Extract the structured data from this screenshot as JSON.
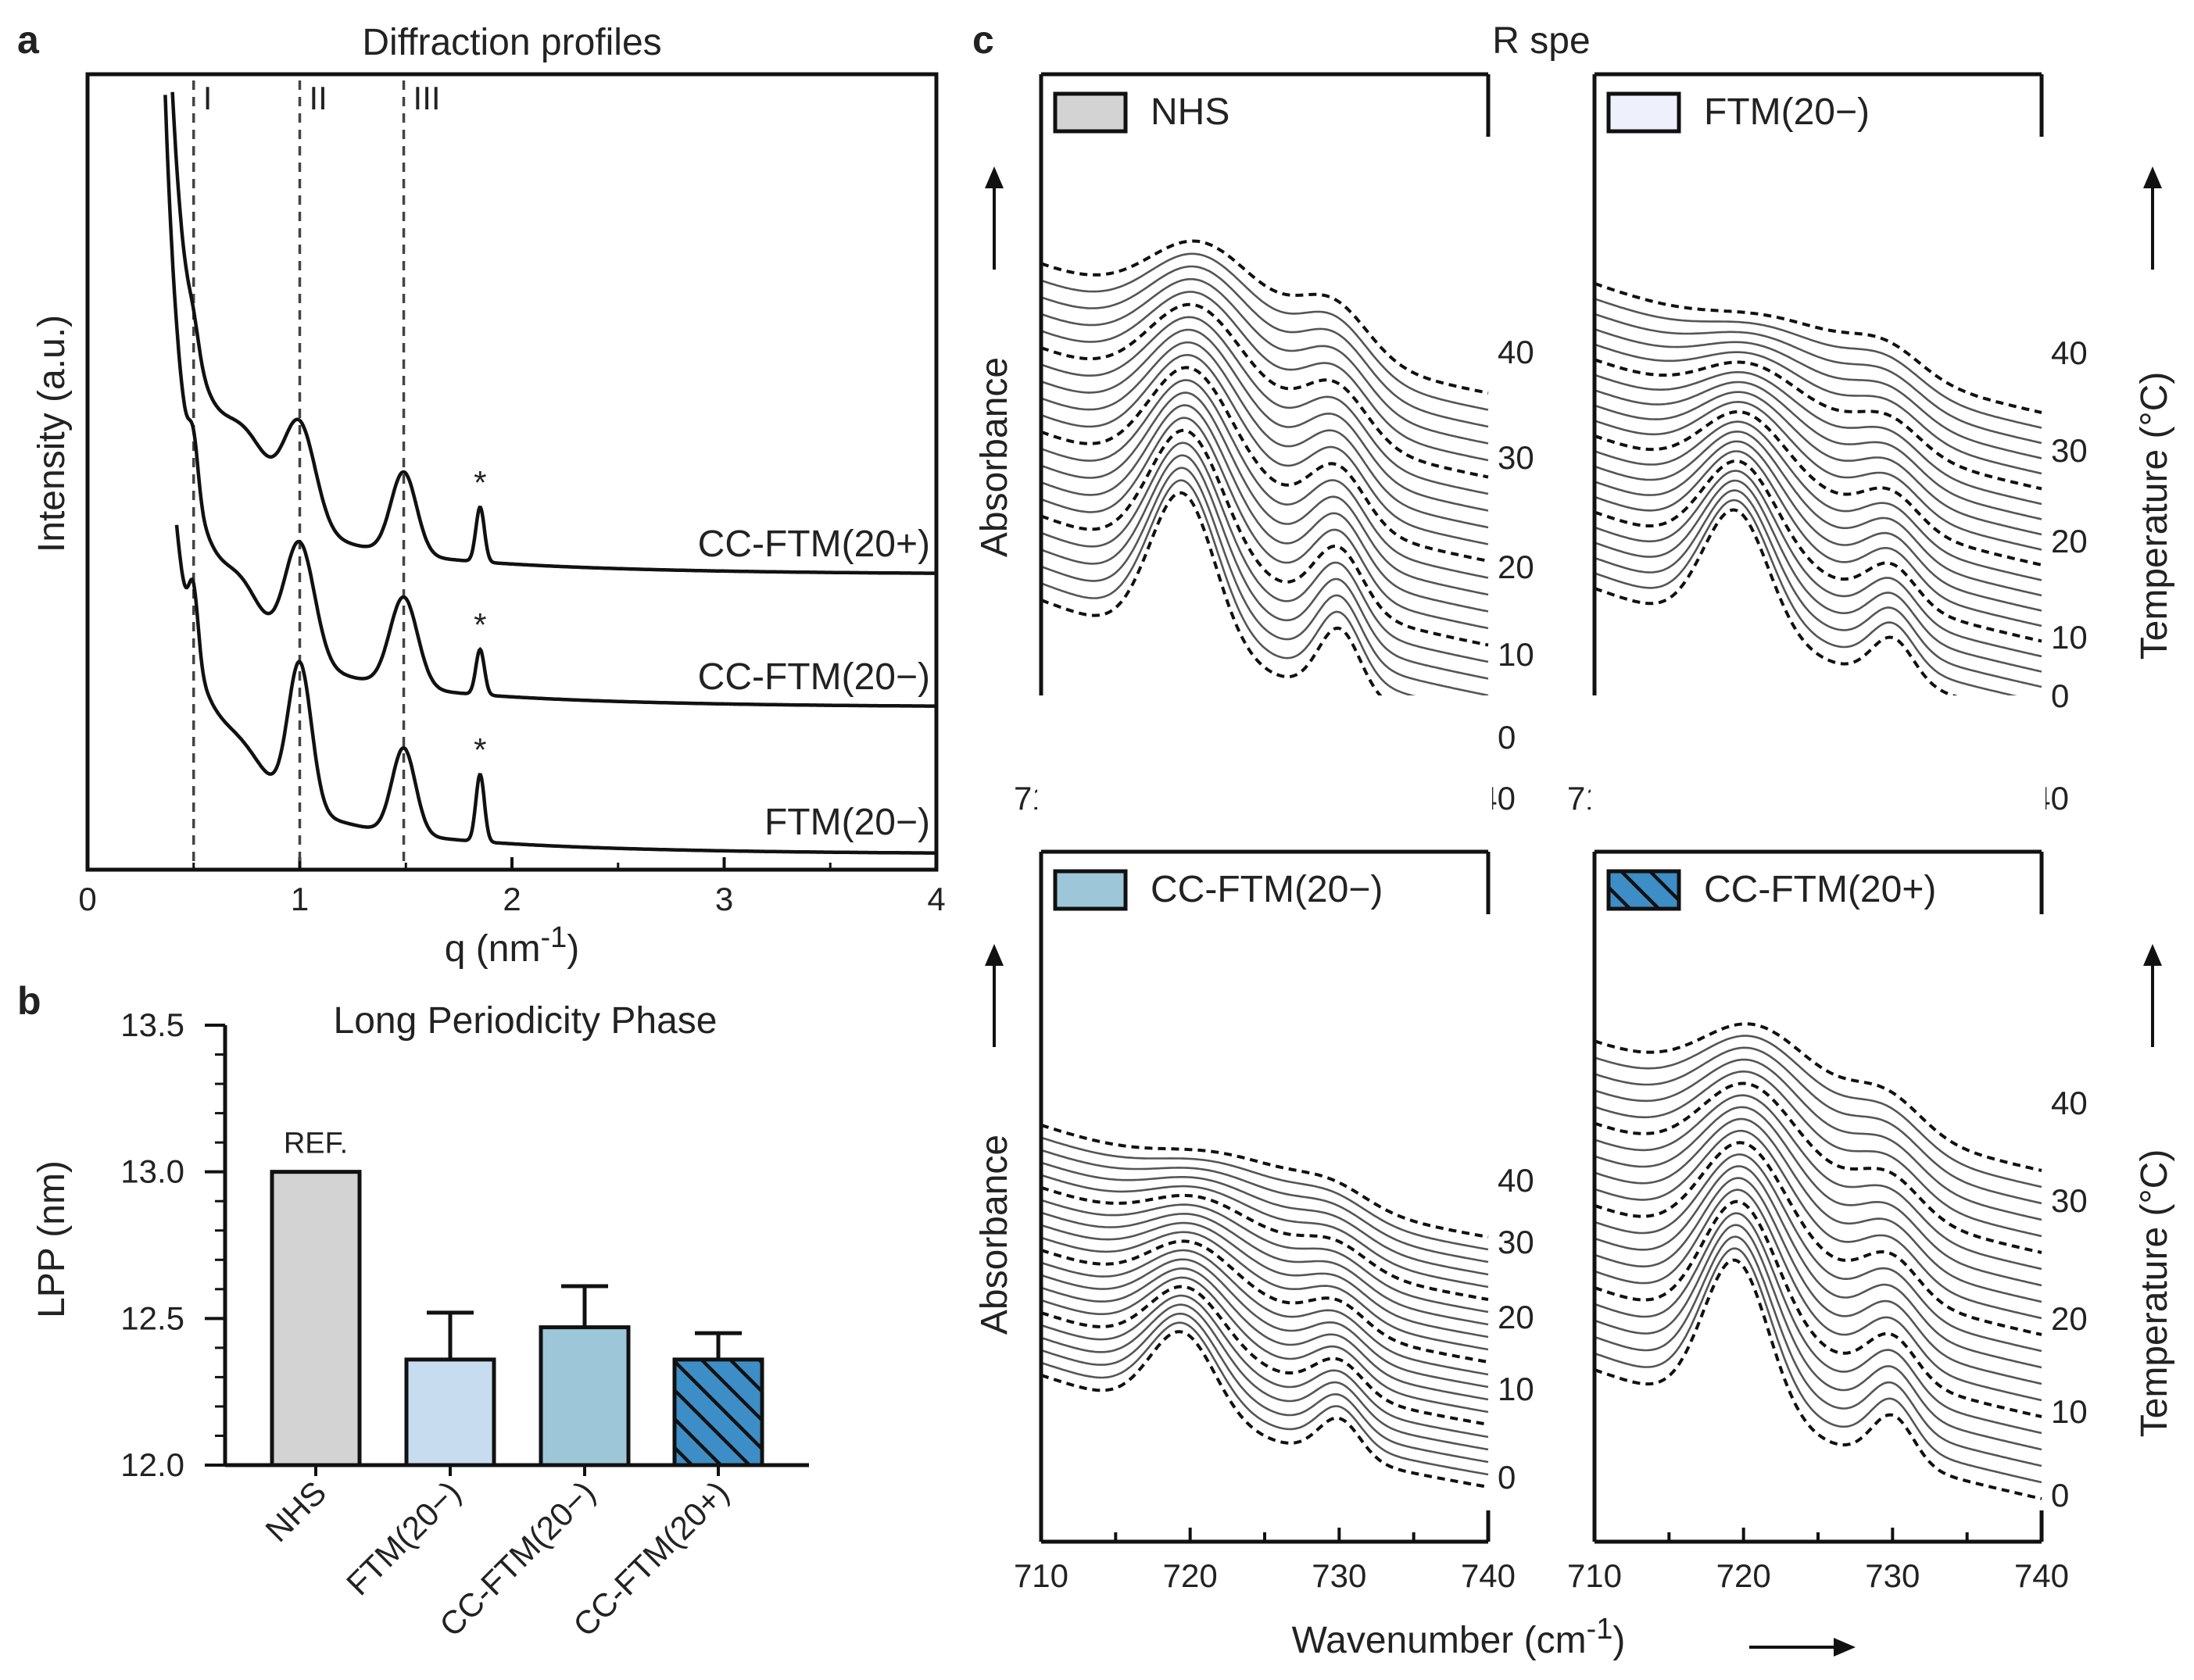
{
  "panel_letters": {
    "a": "a",
    "b": "b",
    "c": "c"
  },
  "chart_data": [
    {
      "id": "a",
      "type": "line",
      "title": "Diffraction profiles",
      "xlabel_main": "q (nm",
      "xlabel_sup": "-1",
      "xlabel_end": ")",
      "ylabel": "Intensity (a.u.)",
      "xlim": [
        0,
        4
      ],
      "xticks": [
        "0",
        "1",
        "2",
        "3",
        "4"
      ],
      "reference_lines": [
        {
          "label": "I",
          "q": 0.5
        },
        {
          "label": "II",
          "q": 1.0
        },
        {
          "label": "III",
          "q": 1.49
        }
      ],
      "peak_marker": "*",
      "series": [
        {
          "name": "CC-FTM(20+)",
          "baseline": 0.0,
          "peaks_q": [
            0.5,
            1.0,
            1.49,
            1.85
          ]
        },
        {
          "name": "CC-FTM(20−)",
          "baseline": 0.0,
          "peaks_q": [
            0.5,
            1.0,
            1.49,
            1.85
          ]
        },
        {
          "name": "FTM(20−)",
          "baseline": 0.0,
          "peaks_q": [
            0.5,
            1.0,
            1.49,
            1.85
          ]
        }
      ]
    },
    {
      "id": "b",
      "type": "bar",
      "title": "Long Periodicity Phase",
      "ylabel": "LPP (nm)",
      "ylim": [
        12.0,
        13.5
      ],
      "yticks": [
        "12.0",
        "12.5",
        "13.0",
        "13.5"
      ],
      "categories": [
        "NHS",
        "FTM(20−)",
        "CC-FTM(20−)",
        "CC-FTM(20+)"
      ],
      "values": [
        13.0,
        12.36,
        12.47,
        12.36
      ],
      "errors": [
        0,
        0.16,
        0.14,
        0.09
      ],
      "colors": [
        "#d3d3d3",
        "#c8dcf0",
        "#9dc6d9",
        "#3d8ec7"
      ],
      "annotation": "REF."
    },
    {
      "id": "c",
      "type": "line",
      "title": "FTIR spectra",
      "xlabel_main": "Wavenumber (cm",
      "xlabel_sup": "-1",
      "xlabel_end": ")",
      "ylabel": "Absorbance",
      "y2label": "Temperature (°C)",
      "xlim": [
        710,
        740
      ],
      "xticks": [
        "710",
        "720",
        "730",
        "740"
      ],
      "subpanels": [
        {
          "name": "NHS",
          "color": "#d3d3d3",
          "temp_ticks": [
            "0",
            "10",
            "20",
            "30",
            "40"
          ]
        },
        {
          "name": "FTM(20−)",
          "color": "#eef0fb",
          "temp_ticks": [
            "0",
            "10",
            "20",
            "30",
            "40"
          ]
        },
        {
          "name": "CC-FTM(20−)",
          "color": "#9dc6d9",
          "temp_ticks": [
            "0",
            "10",
            "20",
            "30",
            "40"
          ]
        },
        {
          "name": "CC-FTM(20+)",
          "color": "#3d8ec7",
          "temp_ticks": [
            "0",
            "10",
            "20",
            "30",
            "40"
          ]
        }
      ]
    }
  ]
}
